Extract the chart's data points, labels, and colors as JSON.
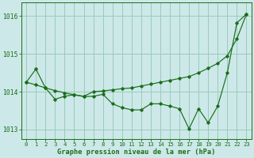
{
  "xlabel": "Graphe pression niveau de la mer (hPa)",
  "background_color": "#cde8e8",
  "grid_color": "#99ccbb",
  "line_color": "#1a6e1a",
  "xlim": [
    -0.5,
    23.5
  ],
  "ylim": [
    1012.75,
    1016.35
  ],
  "yticks": [
    1013,
    1014,
    1015,
    1016
  ],
  "xticks": [
    0,
    1,
    2,
    3,
    4,
    5,
    6,
    7,
    8,
    9,
    10,
    11,
    12,
    13,
    14,
    15,
    16,
    17,
    18,
    19,
    20,
    21,
    22,
    23
  ],
  "series_zigzag": [
    [
      0,
      1014.25
    ],
    [
      1,
      1014.6
    ],
    [
      2,
      1014.1
    ],
    [
      3,
      1013.8
    ],
    [
      4,
      1013.88
    ],
    [
      5,
      1013.92
    ],
    [
      6,
      1013.87
    ],
    [
      7,
      1013.88
    ],
    [
      8,
      1013.93
    ],
    [
      9,
      1013.68
    ],
    [
      10,
      1013.58
    ],
    [
      11,
      1013.52
    ],
    [
      12,
      1013.52
    ],
    [
      13,
      1013.68
    ],
    [
      14,
      1013.68
    ],
    [
      15,
      1013.62
    ],
    [
      16,
      1013.55
    ],
    [
      17,
      1013.02
    ],
    [
      18,
      1013.55
    ],
    [
      19,
      1013.18
    ],
    [
      20,
      1013.62
    ],
    [
      21,
      1014.5
    ],
    [
      22,
      1015.82
    ],
    [
      23,
      1016.05
    ]
  ],
  "series_trend": [
    [
      0,
      1014.25
    ],
    [
      1,
      1014.18
    ],
    [
      2,
      1014.1
    ],
    [
      3,
      1014.03
    ],
    [
      4,
      1013.97
    ],
    [
      5,
      1013.92
    ],
    [
      6,
      1013.88
    ],
    [
      7,
      1014.0
    ],
    [
      8,
      1014.02
    ],
    [
      9,
      1014.05
    ],
    [
      10,
      1014.08
    ],
    [
      11,
      1014.1
    ],
    [
      12,
      1014.15
    ],
    [
      13,
      1014.2
    ],
    [
      14,
      1014.25
    ],
    [
      15,
      1014.3
    ],
    [
      16,
      1014.35
    ],
    [
      17,
      1014.4
    ],
    [
      18,
      1014.5
    ],
    [
      19,
      1014.62
    ],
    [
      20,
      1014.75
    ],
    [
      21,
      1014.95
    ],
    [
      22,
      1015.4
    ],
    [
      23,
      1016.05
    ]
  ],
  "font_family": "monospace"
}
